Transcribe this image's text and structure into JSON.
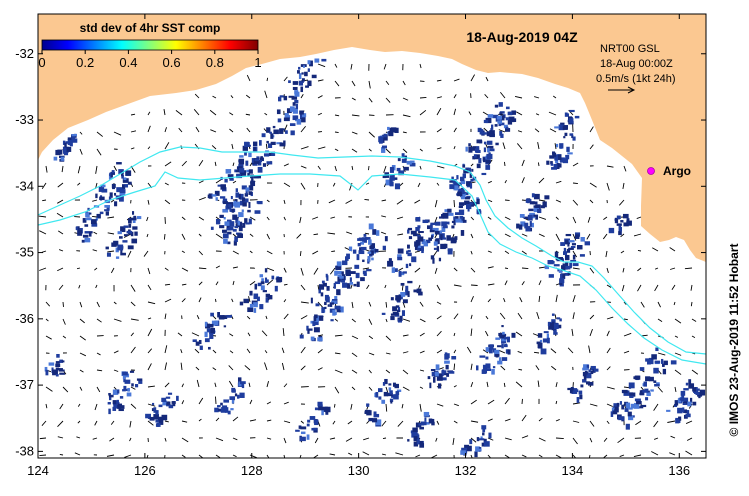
{
  "title": "18-Aug-2019 04Z",
  "colorbar": {
    "label": "std dev of 4hr SST comp",
    "ticks": [
      "0",
      "0.2",
      "0.4",
      "0.6",
      "0.8",
      "1"
    ],
    "range": [
      0,
      1
    ],
    "colormap": "jet"
  },
  "legend": {
    "line1": "NRT00 GSL",
    "line2": "18-Aug 00:00Z",
    "line3": "0.5m/s (1kt 24h)"
  },
  "argo": {
    "label": "Argo",
    "lon": 135.5,
    "lat": -33.6,
    "color": "#ff00ff"
  },
  "credit": "© IMOS 23-Aug-2019 11:52 Hobart",
  "axes": {
    "xlim": [
      124,
      136.5
    ],
    "ylim": [
      -38.1,
      -31.4
    ],
    "xticks": [
      "124",
      "126",
      "128",
      "130",
      "132",
      "134",
      "136"
    ],
    "yticks": [
      "-32",
      "-33",
      "-34",
      "-35",
      "-36",
      "-37",
      "-38"
    ]
  },
  "colors": {
    "land": "#fbc891",
    "data_patch": "#1f3d9e",
    "contour": "#40e8f0"
  }
}
